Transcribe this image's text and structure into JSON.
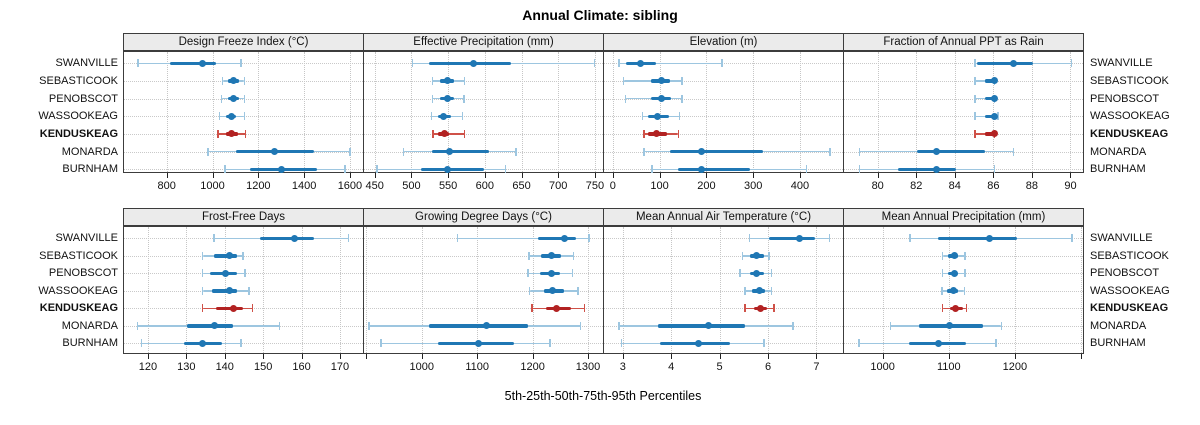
{
  "title": "Annual Climate: sibling",
  "footer": "5th-25th-50th-75th-95th Percentiles",
  "sites": [
    "SWANVILLE",
    "SEBASTICOOK",
    "PENOBSCOT",
    "WASSOOKEAG",
    "KENDUSKEAG",
    "MONARDA",
    "BURNHAM"
  ],
  "highlight_site": "KENDUSKEAG",
  "colors": {
    "blue_dark": "#1f77b4",
    "blue_light": "#9dc6e0",
    "red_dark": "#b22222",
    "red_light": "#cf5148",
    "grid": "#c9c9c9",
    "strip_bg": "#ebebeb",
    "border": "#3c3c3c"
  },
  "chart_data": {
    "type": "dotplot-trellis",
    "title": "Annual Climate: sibling",
    "xlabel": "5th-25th-50th-75th-95th Percentiles",
    "percentile_levels": [
      "5th",
      "25th",
      "50th",
      "75th",
      "95th"
    ],
    "categories": [
      "SWANVILLE",
      "SEBASTICOOK",
      "PENOBSCOT",
      "WASSOOKEAG",
      "KENDUSKEAG",
      "MONARDA",
      "BURNHAM"
    ],
    "grid": "dotted",
    "legend_position": "none",
    "panels": [
      {
        "title": "Design Freeze Index (°C)",
        "row": 0,
        "col": 0,
        "axis": {
          "min": 609,
          "max": 1657,
          "ticks": [
            {
              "v": 800,
              "label": "800"
            },
            {
              "v": 1000,
              "label": "1000"
            },
            {
              "v": 1200,
              "label": "1200"
            },
            {
              "v": 1400,
              "label": "1400"
            },
            {
              "v": 1600,
              "label": "1600"
            }
          ]
        },
        "series": [
          {
            "name": "SWANVILLE",
            "p": [
              670,
              810,
              950,
              1011,
              1120
            ]
          },
          {
            "name": "SEBASTICOOK",
            "p": [
              1040,
              1065,
              1085,
              1110,
              1135
            ]
          },
          {
            "name": "PENOBSCOT",
            "p": [
              1035,
              1065,
              1088,
              1110,
              1135
            ]
          },
          {
            "name": "WASSOOKEAG",
            "p": [
              1025,
              1055,
              1078,
              1100,
              1135
            ]
          },
          {
            "name": "KENDUSKEAG",
            "p": [
              1020,
              1055,
              1078,
              1105,
              1140
            ]
          },
          {
            "name": "MONARDA",
            "p": [
              975,
              1100,
              1265,
              1440,
              1595
            ]
          },
          {
            "name": "BURNHAM",
            "p": [
              1050,
              1160,
              1295,
              1450,
              1575
            ]
          }
        ]
      },
      {
        "title": "Effective Precipitation (mm)",
        "row": 0,
        "col": 1,
        "axis": {
          "min": 434,
          "max": 761,
          "ticks": [
            {
              "v": 450,
              "label": "450"
            },
            {
              "v": 500,
              "label": "500"
            },
            {
              "v": 550,
              "label": "550"
            },
            {
              "v": 600,
              "label": "600"
            },
            {
              "v": 650,
              "label": "650"
            },
            {
              "v": 700,
              "label": "700"
            },
            {
              "v": 750,
              "label": "750"
            }
          ]
        },
        "series": [
          {
            "name": "SWANVILLE",
            "p": [
              500,
              523,
              583,
              634,
              748
            ]
          },
          {
            "name": "SEBASTICOOK",
            "p": [
              527,
              537,
              548,
              557,
              571
            ]
          },
          {
            "name": "PENOBSCOT",
            "p": [
              527,
              537,
              548,
              556,
              570
            ]
          },
          {
            "name": "WASSOOKEAG",
            "p": [
              526,
              535,
              542,
              552,
              568
            ]
          },
          {
            "name": "KENDUSKEAG",
            "p": [
              528,
              535,
              543,
              550,
              571
            ]
          },
          {
            "name": "MONARDA",
            "p": [
              488,
              527,
              551,
              604,
              641
            ]
          },
          {
            "name": "BURNHAM",
            "p": [
              452,
              511,
              548,
              597,
              627
            ]
          }
        ]
      },
      {
        "title": "Elevation (m)",
        "row": 0,
        "col": 2,
        "axis": {
          "min": -21,
          "max": 492,
          "ticks": [
            {
              "v": 0,
              "label": "0"
            },
            {
              "v": 100,
              "label": "100"
            },
            {
              "v": 200,
              "label": "200"
            },
            {
              "v": 300,
              "label": "300"
            },
            {
              "v": 400,
              "label": "400"
            }
          ]
        },
        "series": [
          {
            "name": "SWANVILLE",
            "p": [
              11,
              26,
              57,
              90,
              231
            ]
          },
          {
            "name": "SEBASTICOOK",
            "p": [
              21,
              79,
              102,
              121,
              146
            ]
          },
          {
            "name": "PENOBSCOT",
            "p": [
              25,
              80,
              102,
              122,
              146
            ]
          },
          {
            "name": "WASSOOKEAG",
            "p": [
              61,
              74,
              93,
              117,
              140
            ]
          },
          {
            "name": "KENDUSKEAG",
            "p": [
              64,
              73,
              92,
              113,
              138
            ]
          },
          {
            "name": "MONARDA",
            "p": [
              64,
              121,
              187,
              319,
              462
            ]
          },
          {
            "name": "BURNHAM",
            "p": [
              82,
              138,
              187,
              291,
              412
            ]
          }
        ]
      },
      {
        "title": "Fraction of Annual PPT as Rain",
        "row": 0,
        "col": 3,
        "axis": {
          "min": 78.2,
          "max": 90.65,
          "ticks": [
            {
              "v": 80,
              "label": "80"
            },
            {
              "v": 82,
              "label": "82"
            },
            {
              "v": 84,
              "label": "84"
            },
            {
              "v": 86,
              "label": "86"
            },
            {
              "v": 88,
              "label": "88"
            },
            {
              "v": 90,
              "label": "90"
            }
          ]
        },
        "series": [
          {
            "name": "SWANVILLE",
            "p": [
              85,
              85.1,
              87,
              88,
              90
            ]
          },
          {
            "name": "SEBASTICOOK",
            "p": [
              85,
              85.5,
              86,
              86,
              86
            ]
          },
          {
            "name": "PENOBSCOT",
            "p": [
              85,
              85.5,
              86,
              86,
              86
            ]
          },
          {
            "name": "WASSOOKEAG",
            "p": [
              85,
              85.5,
              86,
              86,
              86.2
            ]
          },
          {
            "name": "KENDUSKEAG",
            "p": [
              85,
              85.5,
              86,
              86,
              86
            ]
          },
          {
            "name": "MONARDA",
            "p": [
              79,
              82,
              83,
              85.5,
              87
            ]
          },
          {
            "name": "BURNHAM",
            "p": [
              79,
              81,
              83,
              84,
              86
            ]
          }
        ]
      },
      {
        "title": "Frost-Free Days",
        "row": 1,
        "col": 0,
        "axis": {
          "min": 113.5,
          "max": 176,
          "ticks": [
            {
              "v": 120,
              "label": "120"
            },
            {
              "v": 130,
              "label": "130"
            },
            {
              "v": 140,
              "label": "140"
            },
            {
              "v": 150,
              "label": "150"
            },
            {
              "v": 160,
              "label": "160"
            },
            {
              "v": 170,
              "label": "170"
            }
          ]
        },
        "series": [
          {
            "name": "SWANVILLE",
            "p": [
              137,
              149,
              158,
              163,
              172
            ]
          },
          {
            "name": "SEBASTICOOK",
            "p": [
              134,
              137,
              141,
              143,
              144.5
            ]
          },
          {
            "name": "PENOBSCOT",
            "p": [
              134,
              136,
              140,
              143,
              145
            ]
          },
          {
            "name": "WASSOOKEAG",
            "p": [
              134,
              136.5,
              141,
              143,
              146
            ]
          },
          {
            "name": "KENDUSKEAG",
            "p": [
              134,
              137.5,
              142,
              144.5,
              147
            ]
          },
          {
            "name": "MONARDA",
            "p": [
              117,
              130,
              137,
              142,
              154
            ]
          },
          {
            "name": "BURNHAM",
            "p": [
              118,
              129,
              134,
              139,
              144
            ]
          }
        ]
      },
      {
        "title": "Growing Degree Days (°C)",
        "row": 1,
        "col": 1,
        "axis": {
          "min": 894,
          "max": 1327,
          "ticks": [
            {
              "v": 900,
              "label": ""
            },
            {
              "v": 1000,
              "label": "1000"
            },
            {
              "v": 1100,
              "label": "1100"
            },
            {
              "v": 1200,
              "label": "1200"
            },
            {
              "v": 1300,
              "label": "1300"
            }
          ]
        },
        "series": [
          {
            "name": "SWANVILLE",
            "p": [
              1063,
              1208,
              1255,
              1277,
              1300
            ]
          },
          {
            "name": "SEBASTICOOK",
            "p": [
              1192,
              1214,
              1232,
              1250,
              1272
            ]
          },
          {
            "name": "PENOBSCOT",
            "p": [
              1190,
              1212,
              1232,
              1248,
              1270
            ]
          },
          {
            "name": "WASSOOKEAG",
            "p": [
              1193,
              1218,
              1234,
              1255,
              1280
            ]
          },
          {
            "name": "KENDUSKEAG",
            "p": [
              1197,
              1222,
              1242,
              1268,
              1292
            ]
          },
          {
            "name": "MONARDA",
            "p": [
              903,
              1011,
              1115,
              1190,
              1285
            ]
          },
          {
            "name": "BURNHAM",
            "p": [
              925,
              1027,
              1100,
              1165,
              1230
            ]
          }
        ]
      },
      {
        "title": "Mean Annual Air Temperature (°C)",
        "row": 1,
        "col": 2,
        "axis": {
          "min": 2.59,
          "max": 7.55,
          "ticks": [
            {
              "v": 3,
              "label": "3"
            },
            {
              "v": 4,
              "label": "4"
            },
            {
              "v": 5,
              "label": "5"
            },
            {
              "v": 6,
              "label": "6"
            },
            {
              "v": 7,
              "label": "7"
            }
          ]
        },
        "series": [
          {
            "name": "SWANVILLE",
            "p": [
              5.6,
              6.0,
              6.62,
              6.95,
              7.25
            ]
          },
          {
            "name": "SEBASTICOOK",
            "p": [
              5.45,
              5.6,
              5.75,
              5.9,
              6.0
            ]
          },
          {
            "name": "PENOBSCOT",
            "p": [
              5.4,
              5.6,
              5.75,
              5.9,
              6.05
            ]
          },
          {
            "name": "WASSOOKEAG",
            "p": [
              5.5,
              5.65,
              5.8,
              5.92,
              6.05
            ]
          },
          {
            "name": "KENDUSKEAG",
            "p": [
              5.5,
              5.68,
              5.83,
              5.95,
              6.1
            ]
          },
          {
            "name": "MONARDA",
            "p": [
              2.9,
              3.7,
              4.75,
              5.5,
              6.5
            ]
          },
          {
            "name": "BURNHAM",
            "p": [
              2.95,
              3.75,
              4.55,
              5.2,
              5.9
            ]
          }
        ]
      },
      {
        "title": "Mean Annual Precipitation (mm)",
        "row": 1,
        "col": 3,
        "axis": {
          "min": 940,
          "max": 1303,
          "ticks": [
            {
              "v": 1000,
              "label": "1000"
            },
            {
              "v": 1100,
              "label": "1100"
            },
            {
              "v": 1200,
              "label": "1200"
            },
            {
              "v": 1300,
              "label": ""
            }
          ]
        },
        "series": [
          {
            "name": "SWANVILLE",
            "p": [
              1040,
              1082,
              1160,
              1202,
              1285
            ]
          },
          {
            "name": "SEBASTICOOK",
            "p": [
              1089,
              1098,
              1107,
              1113,
              1123
            ]
          },
          {
            "name": "PENOBSCOT",
            "p": [
              1089,
              1098,
              1107,
              1113,
              1123
            ]
          },
          {
            "name": "WASSOOKEAG",
            "p": [
              1088,
              1096,
              1105,
              1112,
              1122
            ]
          },
          {
            "name": "KENDUSKEAG",
            "p": [
              1089,
              1100,
              1108,
              1120,
              1125
            ]
          },
          {
            "name": "MONARDA",
            "p": [
              1010,
              1054,
              1100,
              1150,
              1178
            ]
          },
          {
            "name": "BURNHAM",
            "p": [
              963,
              1038,
              1083,
              1125,
              1170
            ]
          }
        ]
      }
    ]
  }
}
